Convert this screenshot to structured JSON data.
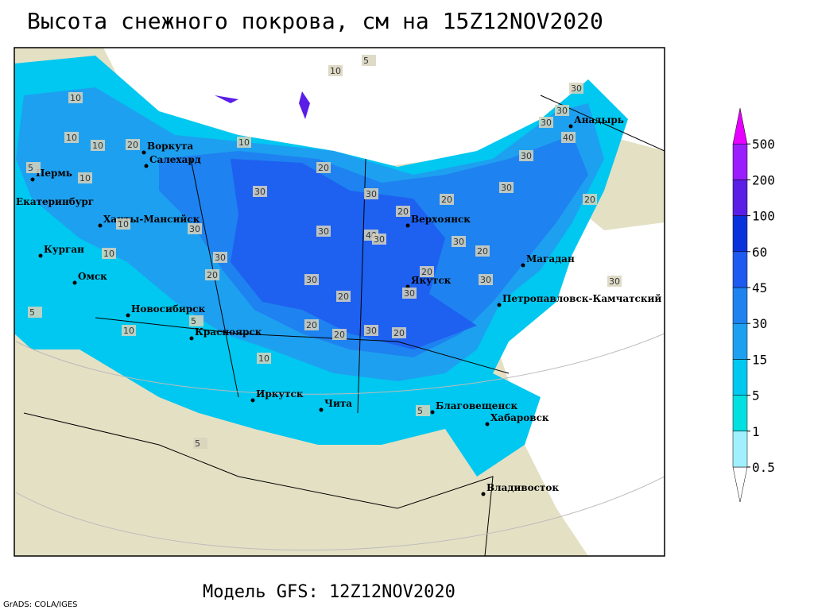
{
  "title": "Высота снежного покрова, см на 15Z12NOV2020",
  "footer": "Модель GFS: 12Z12NOV2020",
  "credit": "GrADS: COLA/IGES",
  "cities": [
    "Воркута",
    "Салехард",
    "Пермь",
    "Екатеринбург",
    "Ханты-Мансийск",
    "Курган",
    "Омск",
    "Новосибирск",
    "Красноярск",
    "Иркутск",
    "Чита",
    "Благовещенск",
    "Хабаровск",
    "Владивосток",
    "Якутск",
    "Верхоянск",
    "Магадан",
    "Петропавловск-Камчатский",
    "Анадырь"
  ],
  "contour_labels": [
    5,
    10,
    10,
    10,
    10,
    20,
    5,
    10,
    10,
    20,
    30,
    30,
    20,
    40,
    20,
    30,
    30,
    30,
    20,
    30,
    30,
    20,
    20,
    30,
    30,
    20,
    30,
    20,
    20,
    30,
    30,
    30,
    30,
    40,
    30,
    20,
    10,
    5,
    10,
    5,
    5,
    10,
    20,
    5,
    10,
    30,
    30
  ],
  "legend": {
    "levels": [
      0.5,
      1,
      5,
      15,
      30,
      45,
      60,
      100,
      200,
      500
    ],
    "colors": [
      "#ffffff",
      "#a0f0ff",
      "#00e0e0",
      "#00c8f0",
      "#1ea0f0",
      "#1e82f0",
      "#1e5af0",
      "#0a32dc",
      "#5a1ee6",
      "#9b1eff",
      "#e600ff"
    ]
  }
}
